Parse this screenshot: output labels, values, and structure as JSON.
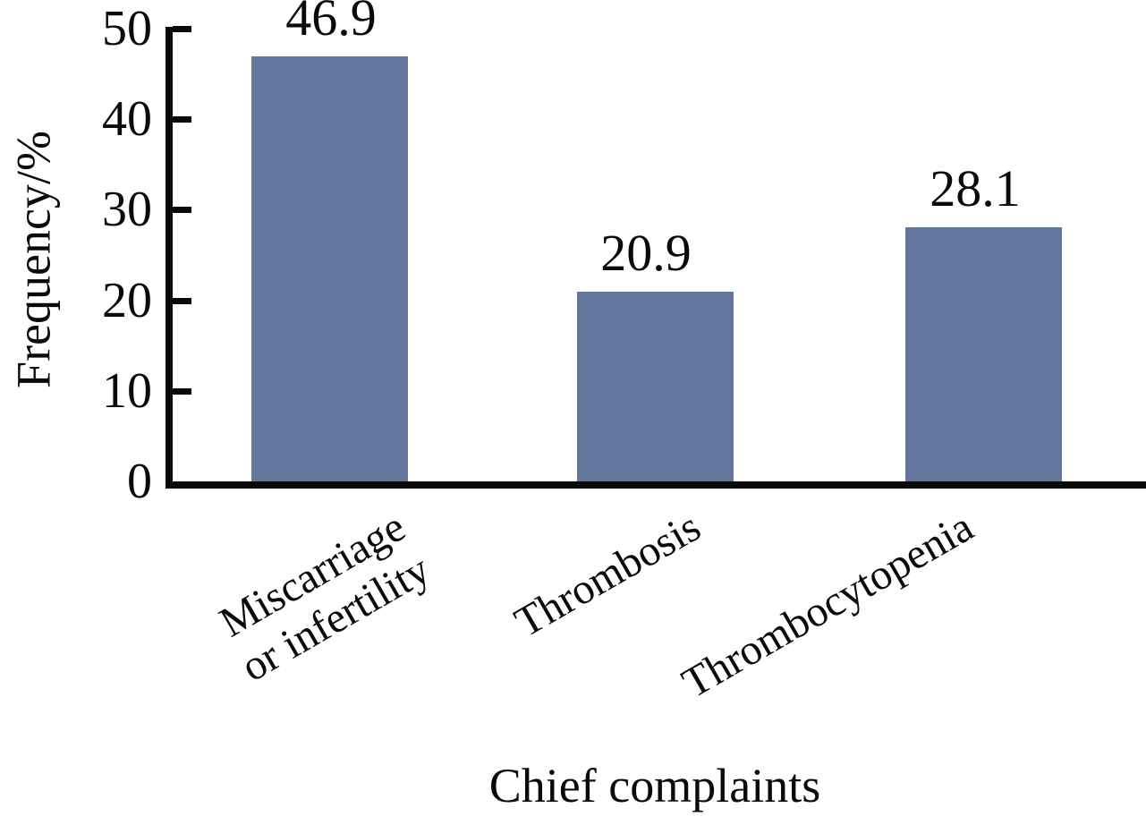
{
  "chart_data": {
    "type": "bar",
    "categories": [
      "Miscarriage or infertility",
      "Thrombosis",
      "Thrombocytopenia"
    ],
    "display_categories": [
      "Miscarriage\nor infertility",
      "Thrombosis",
      "Thrombocytopenia"
    ],
    "values": [
      46.9,
      20.9,
      28.1
    ],
    "value_labels": [
      "46.9",
      "20.9",
      "28.1"
    ],
    "xlabel": "Chief complaints",
    "ylabel": "Frequency/%",
    "ylim": [
      0,
      50
    ],
    "yticks": [
      0,
      10,
      20,
      30,
      40,
      50
    ],
    "grid": false,
    "legend_position": "none",
    "bar_color": "#64759e",
    "axis_color": "#0a0a0a",
    "background_color": "#ffffff"
  }
}
